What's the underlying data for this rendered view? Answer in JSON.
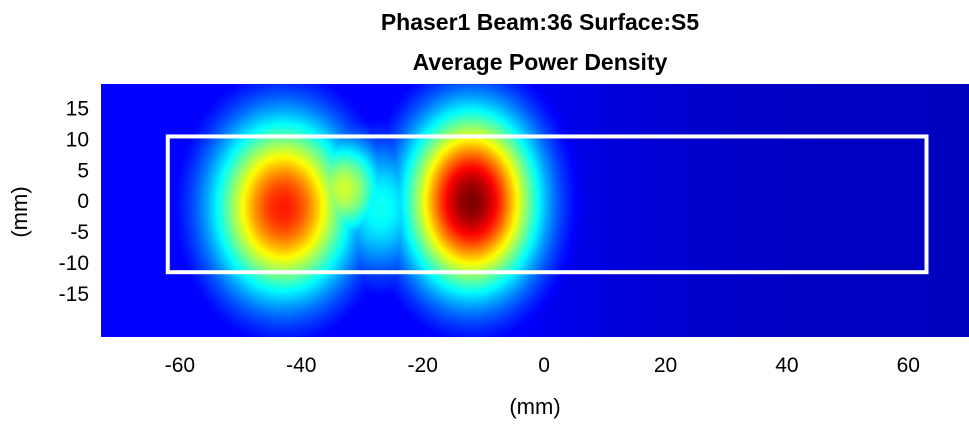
{
  "chart_data": {
    "type": "heatmap",
    "title_line1": "Phaser1 Beam:36 Surface:S5",
    "title_line2": "Average Power Density",
    "xlabel": "(mm)",
    "ylabel": "(mm)",
    "xlim": [
      -73,
      70
    ],
    "ylim": [
      -22,
      19
    ],
    "x_ticks": [
      -60,
      -40,
      -20,
      0,
      20,
      40,
      60
    ],
    "x_tick_labels": [
      "-60",
      "-40",
      "-20",
      "0",
      "20",
      "40",
      "60"
    ],
    "y_ticks": [
      15,
      10,
      5,
      0,
      -5,
      -10,
      -15
    ],
    "y_tick_labels": [
      "15",
      "10",
      "5",
      "0",
      "-5",
      "-10",
      "-15"
    ],
    "colormap": "jet",
    "hotspots": [
      {
        "x": -43,
        "y": -1,
        "intensity": 0.84,
        "sx": 8,
        "sy": 10
      },
      {
        "x": -33,
        "y": 2,
        "intensity": 0.55,
        "sx": 5,
        "sy": 6
      },
      {
        "x": -12,
        "y": 0,
        "intensity": 1.0,
        "sx": 7.5,
        "sy": 10
      },
      {
        "x": -12,
        "y": 11,
        "intensity": 0.4,
        "sx": 5,
        "sy": 5
      },
      {
        "x": -27,
        "y": -1,
        "intensity": 0.35,
        "sx": 6,
        "sy": 8
      }
    ],
    "outline_rect": {
      "x_min": -62,
      "x_max": 63,
      "y_min": -11.5,
      "y_max": 10.5,
      "color": "#ffffff"
    }
  }
}
